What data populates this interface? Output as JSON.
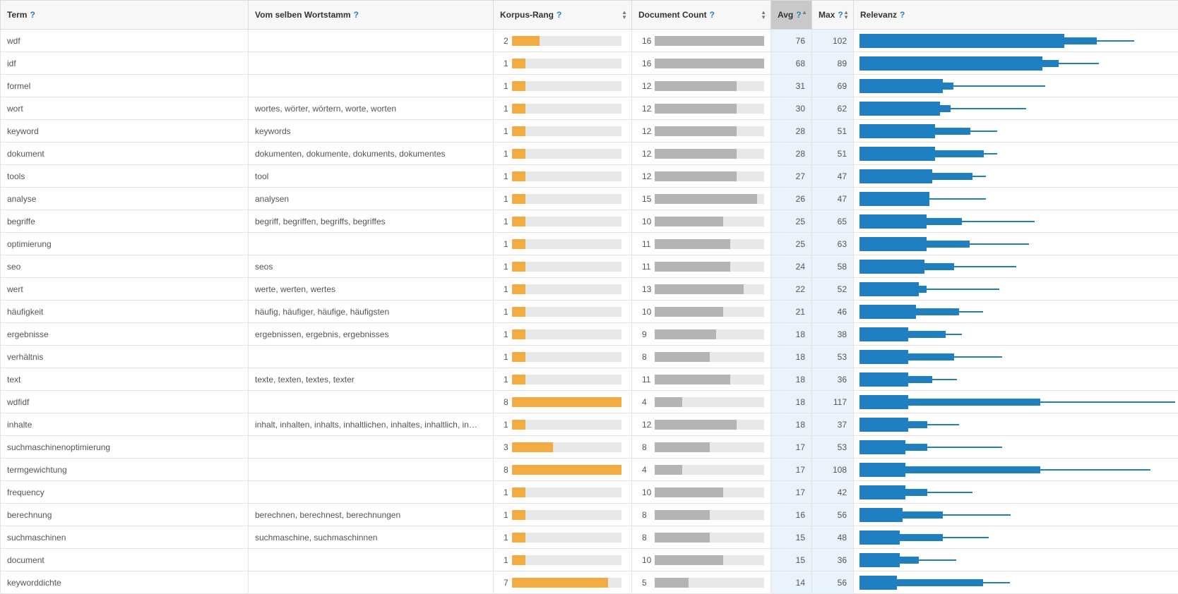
{
  "columns": {
    "term": "Term",
    "stem": "Vom selben Wortstamm",
    "rank": "Korpus-Rang",
    "doc": "Document Count",
    "avg": "Avg",
    "max": "Max",
    "rel": "Relevanz",
    "help": "?"
  },
  "sort": {
    "column": "avg",
    "direction": "descending"
  },
  "scales": {
    "rank_max": 8,
    "doc_max": 16,
    "rel_max": 118
  },
  "colors": {
    "rank_bar": "#f2ac42",
    "doc_bar": "#b4b4b4",
    "relevance_bar": "#1f7fc0",
    "sorted_header": "#c9c9c9"
  },
  "rows": [
    {
      "term": "wdf",
      "stem": "",
      "rank": 2,
      "doc": 16,
      "avg": 76,
      "max": 102,
      "rel_mid": 88
    },
    {
      "term": "idf",
      "stem": "",
      "rank": 1,
      "doc": 16,
      "avg": 68,
      "max": 89,
      "rel_mid": 74
    },
    {
      "term": "formel",
      "stem": "",
      "rank": 1,
      "doc": 12,
      "avg": 31,
      "max": 69,
      "rel_mid": 35
    },
    {
      "term": "wort",
      "stem": "wortes, wörter, wörtern, worte, worten",
      "rank": 1,
      "doc": 12,
      "avg": 30,
      "max": 62,
      "rel_mid": 34
    },
    {
      "term": "keyword",
      "stem": "keywords",
      "rank": 1,
      "doc": 12,
      "avg": 28,
      "max": 51,
      "rel_mid": 41
    },
    {
      "term": "dokument",
      "stem": "dokumenten, dokumente, dokuments, dokumentes",
      "rank": 1,
      "doc": 12,
      "avg": 28,
      "max": 51,
      "rel_mid": 46
    },
    {
      "term": "tools",
      "stem": "tool",
      "rank": 1,
      "doc": 12,
      "avg": 27,
      "max": 47,
      "rel_mid": 42
    },
    {
      "term": "analyse",
      "stem": "analysen",
      "rank": 1,
      "doc": 15,
      "avg": 26,
      "max": 47,
      "rel_mid": 26
    },
    {
      "term": "begriffe",
      "stem": "begriff, begriffen, begriffs, begriffes",
      "rank": 1,
      "doc": 10,
      "avg": 25,
      "max": 65,
      "rel_mid": 38
    },
    {
      "term": "optimierung",
      "stem": "",
      "rank": 1,
      "doc": 11,
      "avg": 25,
      "max": 63,
      "rel_mid": 41
    },
    {
      "term": "seo",
      "stem": "seos",
      "rank": 1,
      "doc": 11,
      "avg": 24,
      "max": 58,
      "rel_mid": 35
    },
    {
      "term": "wert",
      "stem": "werte, werten, wertes",
      "rank": 1,
      "doc": 13,
      "avg": 22,
      "max": 52,
      "rel_mid": 25
    },
    {
      "term": "häufigkeit",
      "stem": "häufig, häufiger, häufige, häufigsten",
      "rank": 1,
      "doc": 10,
      "avg": 21,
      "max": 46,
      "rel_mid": 37
    },
    {
      "term": "ergebnisse",
      "stem": "ergebnissen, ergebnis, ergebnisses",
      "rank": 1,
      "doc": 9,
      "avg": 18,
      "max": 38,
      "rel_mid": 32
    },
    {
      "term": "verhältnis",
      "stem": "",
      "rank": 1,
      "doc": 8,
      "avg": 18,
      "max": 53,
      "rel_mid": 35
    },
    {
      "term": "text",
      "stem": "texte, texten, textes, texter",
      "rank": 1,
      "doc": 11,
      "avg": 18,
      "max": 36,
      "rel_mid": 27
    },
    {
      "term": "wdfidf",
      "stem": "",
      "rank": 8,
      "doc": 4,
      "avg": 18,
      "max": 117,
      "rel_mid": 67
    },
    {
      "term": "inhalte",
      "stem": "inhalt, inhalten, inhalts, inhaltlichen, inhaltes, inhaltlich, in…",
      "rank": 1,
      "doc": 12,
      "avg": 18,
      "max": 37,
      "rel_mid": 25
    },
    {
      "term": "suchmaschinenoptimierung",
      "stem": "",
      "rank": 3,
      "doc": 8,
      "avg": 17,
      "max": 53,
      "rel_mid": 25
    },
    {
      "term": "termgewichtung",
      "stem": "",
      "rank": 8,
      "doc": 4,
      "avg": 17,
      "max": 108,
      "rel_mid": 67
    },
    {
      "term": "frequency",
      "stem": "",
      "rank": 1,
      "doc": 10,
      "avg": 17,
      "max": 42,
      "rel_mid": 25
    },
    {
      "term": "berechnung",
      "stem": "berechnen, berechnest, berechnungen",
      "rank": 1,
      "doc": 8,
      "avg": 16,
      "max": 56,
      "rel_mid": 31
    },
    {
      "term": "suchmaschinen",
      "stem": "suchmaschine, suchmaschinnen",
      "rank": 1,
      "doc": 8,
      "avg": 15,
      "max": 48,
      "rel_mid": 31
    },
    {
      "term": "document",
      "stem": "",
      "rank": 1,
      "doc": 10,
      "avg": 15,
      "max": 36,
      "rel_mid": 22
    },
    {
      "term": "keyworddichte",
      "stem": "",
      "rank": 7,
      "doc": 5,
      "avg": 14,
      "max": 56,
      "rel_mid": 46
    }
  ]
}
